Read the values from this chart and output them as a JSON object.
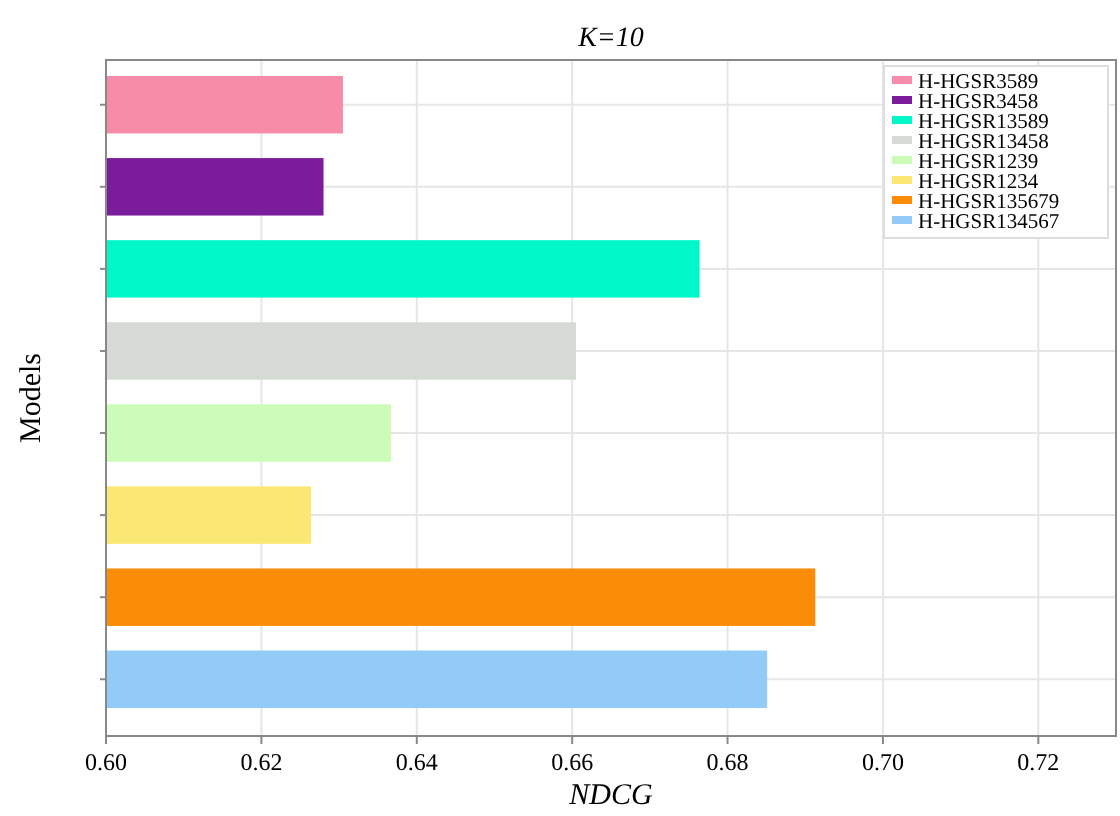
{
  "chart_data": {
    "type": "bar",
    "orientation": "horizontal",
    "title": "K=10",
    "xlabel": "NDCG",
    "ylabel": "Models",
    "categories": [
      null,
      null,
      null,
      null,
      null,
      null,
      null,
      null
    ],
    "series": [
      {
        "name": "H-HGSR3589",
        "color": "#f78ca8",
        "values": [
          0.6305,
          null,
          null,
          null,
          null,
          null,
          null,
          null
        ]
      },
      {
        "name": "H-HGSR3458",
        "color": "#7b1c9c",
        "values": [
          null,
          0.628,
          null,
          null,
          null,
          null,
          null,
          null
        ]
      },
      {
        "name": "H-HGSR13589",
        "color": "#00f7c8",
        "values": [
          null,
          null,
          0.6764,
          null,
          null,
          null,
          null,
          null
        ]
      },
      {
        "name": "H-HGSR13458",
        "color": "#d5dad5",
        "values": [
          null,
          null,
          null,
          0.6605,
          null,
          null,
          null,
          null
        ]
      },
      {
        "name": "H-HGSR1239",
        "color": "#cdfcb8",
        "values": [
          null,
          null,
          null,
          null,
          0.6367,
          null,
          null,
          null
        ]
      },
      {
        "name": "H-HGSR1234",
        "color": "#fbe874",
        "values": [
          null,
          null,
          null,
          null,
          null,
          0.6264,
          null,
          null
        ]
      },
      {
        "name": "H-HGSR135679",
        "color": "#fb8c08",
        "values": [
          null,
          null,
          null,
          null,
          null,
          null,
          0.6913,
          null
        ]
      },
      {
        "name": "H-HGSR134567",
        "color": "#92cbf7",
        "values": [
          null,
          null,
          null,
          null,
          null,
          null,
          null,
          0.6851
        ]
      }
    ],
    "xlim": [
      0.6,
      0.73
    ],
    "xticks": [
      {
        "value": 0.6,
        "label": "0.60"
      },
      {
        "value": 0.62,
        "label": "0.62"
      },
      {
        "value": 0.64,
        "label": "0.64"
      },
      {
        "value": 0.66,
        "label": "0.66"
      },
      {
        "value": 0.68,
        "label": "0.68"
      },
      {
        "value": 0.7,
        "label": "0.70"
      },
      {
        "value": 0.72,
        "label": "0.72"
      }
    ],
    "grid": true,
    "legend": "top right",
    "tick_labels": "x"
  }
}
